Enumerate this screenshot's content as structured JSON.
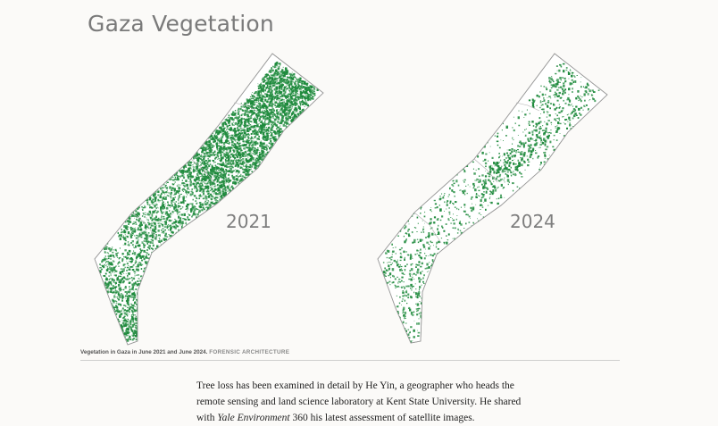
{
  "title": "Gaza Vegetation",
  "maps": [
    {
      "year_label": "2021",
      "vegetation_density": "high",
      "fill_color": "#1e8a3c"
    },
    {
      "year_label": "2024",
      "vegetation_density": "low",
      "fill_color": "#1e8a3c"
    }
  ],
  "caption": {
    "text": "Vegetation in Gaza in June 2021 and June 2024.",
    "credit": "FORENSIC ARCHITECTURE"
  },
  "article": {
    "line1": "Tree loss has been examined in detail by He Yin, a geographer who heads the",
    "line2": "remote sensing and land science laboratory at Kent State University. He shared",
    "line3_prefix": "with ",
    "line3_italic": "Yale Environment",
    "line3_suffix": " 360 his latest assessment of satellite images."
  },
  "colors": {
    "background": "#fbfaf8",
    "vegetation": "#1e8a3c",
    "outline": "#9a9a9a"
  }
}
